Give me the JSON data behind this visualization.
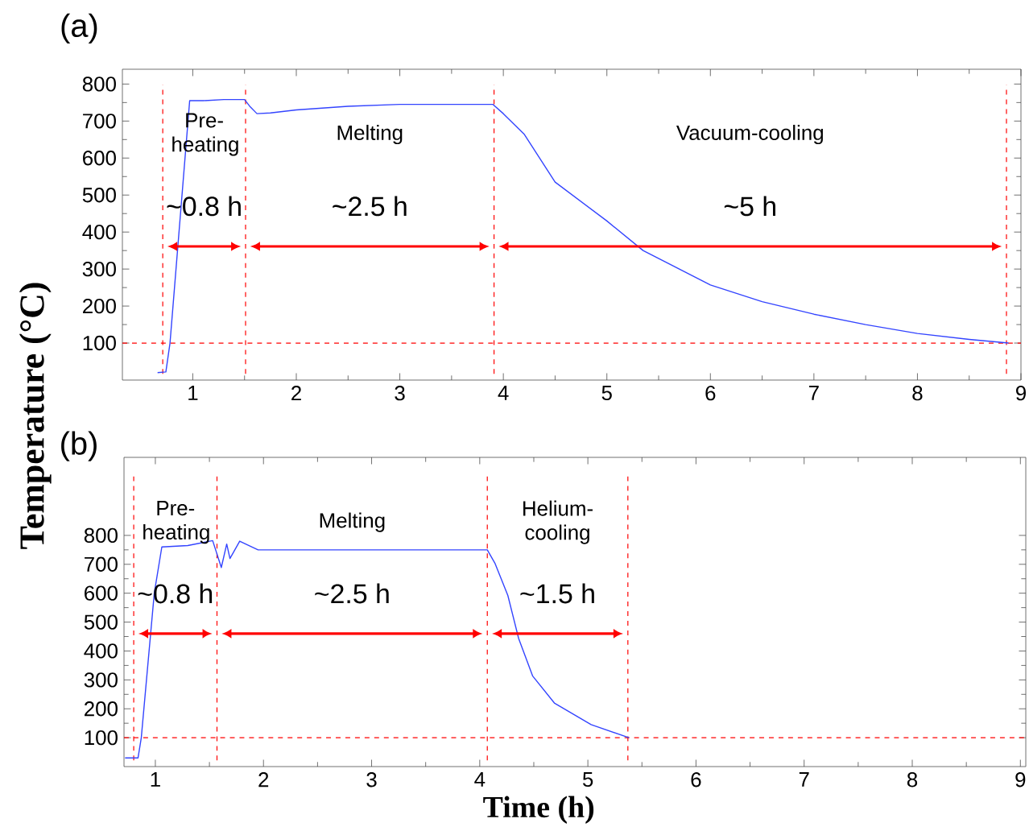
{
  "chart_data": [
    {
      "type": "line",
      "title": "(a)",
      "ylabel": "Temperature (°C)",
      "xlim": [
        0.32,
        9.0
      ],
      "ylim": [
        0,
        840
      ],
      "xticks": [
        1,
        2,
        3,
        4,
        5,
        6,
        7,
        8,
        9
      ],
      "yticks": [
        100,
        200,
        300,
        400,
        500,
        600,
        700,
        800
      ],
      "series": [
        {
          "color": "#3344ff",
          "x": [
            0.66,
            0.74,
            0.78,
            0.97,
            1.1,
            1.3,
            1.5,
            1.55,
            1.62,
            1.75,
            2.0,
            2.5,
            3.0,
            3.5,
            3.9,
            4.0,
            4.2,
            4.5,
            5.0,
            5.35,
            6.0,
            6.5,
            7.0,
            7.5,
            8.0,
            8.5,
            8.88
          ],
          "values": [
            20,
            22,
            100,
            755,
            755,
            758,
            758,
            740,
            720,
            722,
            730,
            740,
            745,
            745,
            745,
            720,
            665,
            535,
            430,
            350,
            257,
            212,
            178,
            150,
            126,
            110,
            100
          ]
        }
      ],
      "ref_lines": [
        {
          "axis": "y",
          "value": 100,
          "color": "#ff0000",
          "line_style": "dashed"
        },
        {
          "axis": "x",
          "value": 0.71,
          "color": "#ff0000",
          "line_style": "dashed"
        },
        {
          "axis": "x",
          "value": 1.51,
          "color": "#ff0000",
          "line_style": "dashed"
        },
        {
          "axis": "x",
          "value": 3.91,
          "color": "#ff0000",
          "line_style": "dashed"
        },
        {
          "axis": "x",
          "value": 8.86,
          "color": "#ff0000",
          "line_style": "dashed"
        }
      ],
      "annotations": [
        "Pre-heating",
        "~0.8 h",
        "Melting",
        "~2.5 h",
        "Vacuum-cooling",
        "~5 h"
      ]
    },
    {
      "type": "line",
      "title": "(b)",
      "xlabel": "Time (h)",
      "xlim": [
        0.71,
        9.05
      ],
      "ylim": [
        0,
        1070
      ],
      "xticks": [
        1,
        2,
        3,
        4,
        5,
        6,
        7,
        8,
        9
      ],
      "yticks": [
        100,
        200,
        300,
        400,
        500,
        600,
        700,
        800
      ],
      "series": [
        {
          "color": "#3344ff",
          "x": [
            0.72,
            0.84,
            0.87,
            0.99,
            1.06,
            1.3,
            1.53,
            1.61,
            1.66,
            1.69,
            1.78,
            1.95,
            3.0,
            4.07,
            4.14,
            4.26,
            4.36,
            4.49,
            4.69,
            5.03,
            5.38
          ],
          "values": [
            30,
            30,
            100,
            600,
            760,
            765,
            782,
            689,
            770,
            720,
            780,
            750,
            750,
            750,
            704,
            592,
            443,
            313,
            220,
            145,
            100
          ]
        }
      ],
      "ref_lines": [
        {
          "axis": "y",
          "value": 100,
          "color": "#ff0000",
          "line_style": "dashed"
        },
        {
          "axis": "x",
          "value": 0.8,
          "color": "#ff0000",
          "line_style": "dashed"
        },
        {
          "axis": "x",
          "value": 1.57,
          "color": "#ff0000",
          "line_style": "dashed"
        },
        {
          "axis": "x",
          "value": 4.07,
          "color": "#ff0000",
          "line_style": "dashed"
        },
        {
          "axis": "x",
          "value": 5.37,
          "color": "#ff0000",
          "line_style": "dashed"
        }
      ],
      "annotations": [
        "Pre-heating",
        "~0.8 h",
        "Melting",
        "~2.5 h",
        "Helium-cooling",
        "~1.5 h"
      ]
    }
  ]
}
